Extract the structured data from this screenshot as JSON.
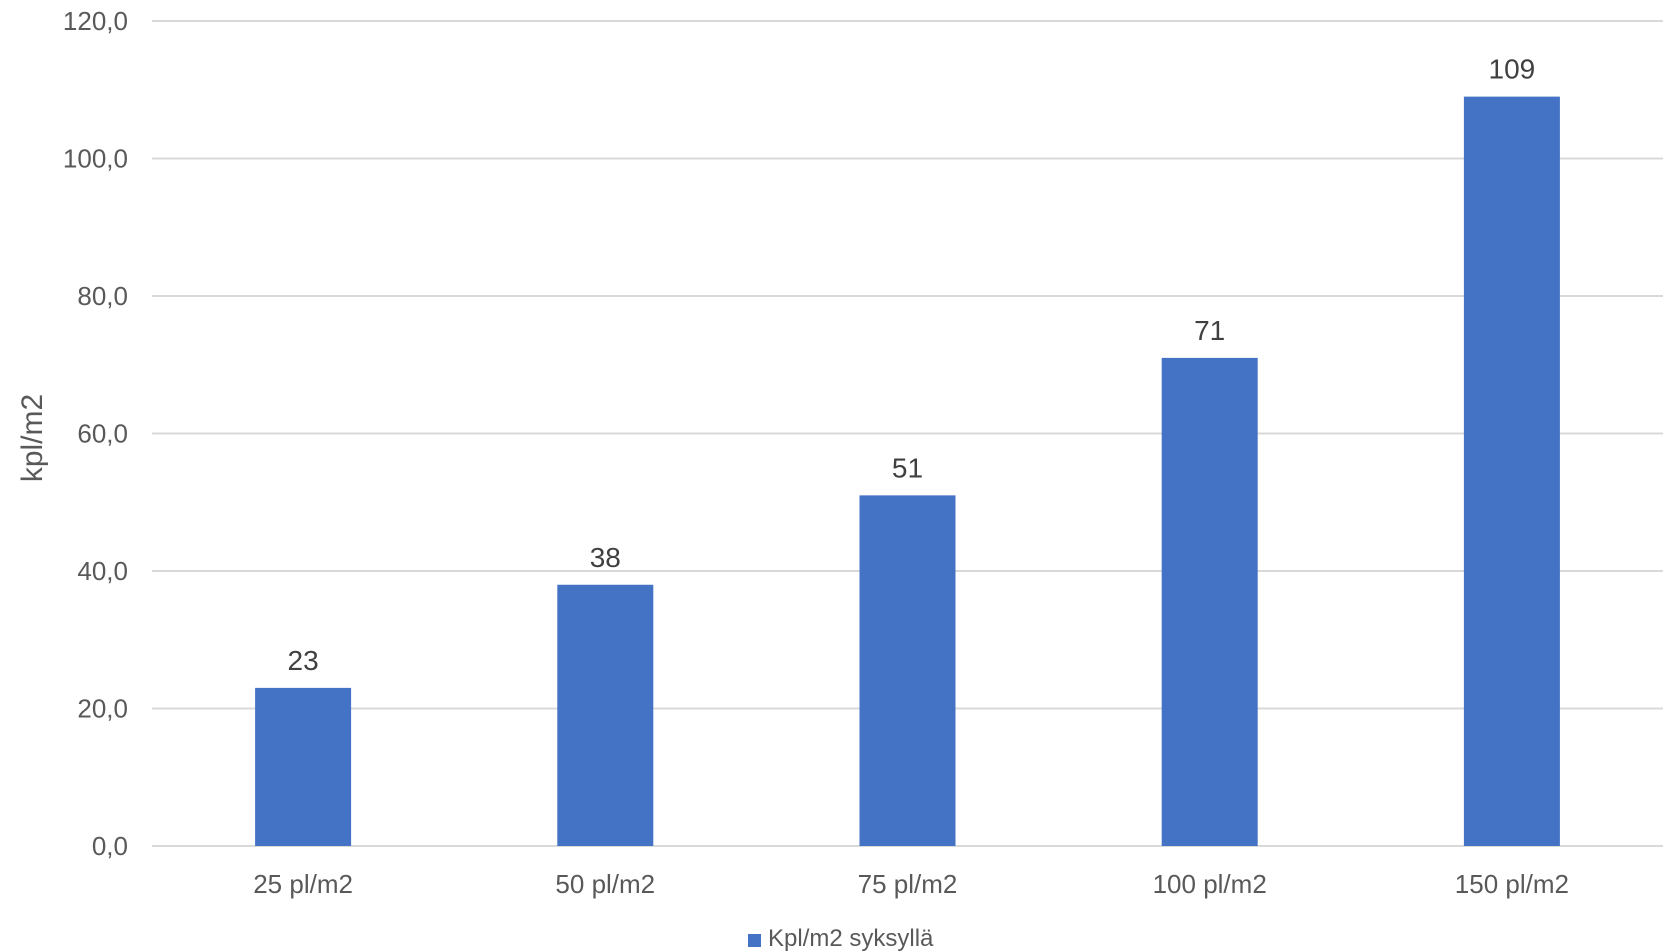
{
  "chart_data": {
    "type": "bar",
    "categories": [
      "25 pl/m2",
      "50 pl/m2",
      "75 pl/m2",
      "100 pl/m2",
      "150 pl/m2"
    ],
    "series": [
      {
        "name": "Kpl/m2 syksyllä",
        "values": [
          23,
          38,
          51,
          71,
          109
        ],
        "data_labels": [
          "23",
          "38",
          "51",
          "71",
          "109"
        ],
        "color": "#4472c4"
      }
    ],
    "ylabel": "kpl/m2",
    "xlabel": "",
    "ylim": [
      0,
      120
    ],
    "yticks": [
      0,
      20,
      40,
      60,
      80,
      100,
      120
    ],
    "ytick_labels": [
      "0,0",
      "20,0",
      "40,0",
      "60,0",
      "80,0",
      "100,0",
      "120,0"
    ],
    "grid": true,
    "legend_position": "bottom"
  }
}
